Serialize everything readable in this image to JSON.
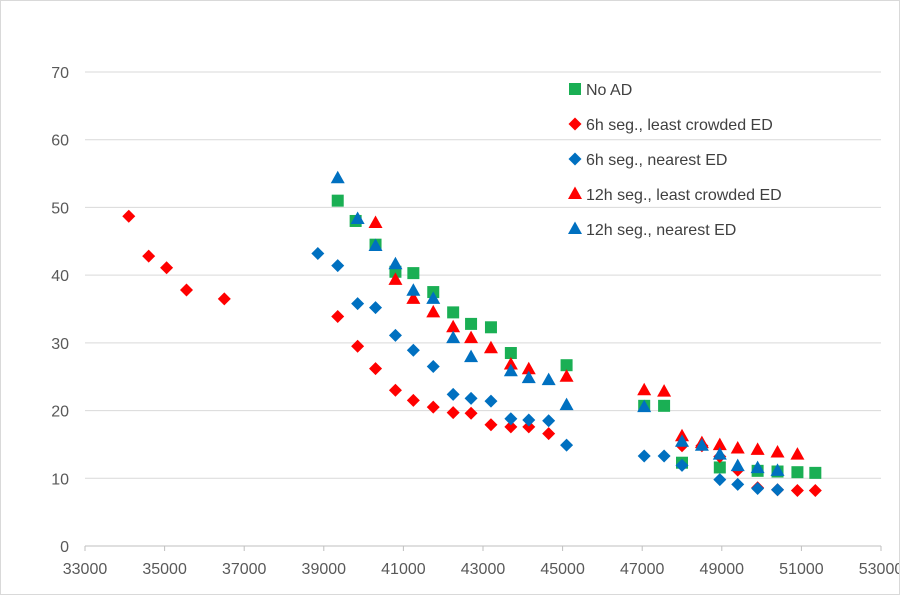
{
  "chart_data": {
    "type": "scatter",
    "title": "",
    "xlabel": "",
    "ylabel": "",
    "xlim": [
      33000,
      53000
    ],
    "ylim": [
      0,
      70
    ],
    "x_ticks": [
      33000,
      35000,
      37000,
      39000,
      41000,
      43000,
      45000,
      47000,
      49000,
      51000,
      53000
    ],
    "y_ticks": [
      0,
      10,
      20,
      30,
      40,
      50,
      60,
      70
    ],
    "grid": "horizontal",
    "legend_position": "top-right (inside plot)",
    "series": [
      {
        "name": "No AD",
        "marker": "square",
        "color": "#1aaf54",
        "points": [
          [
            39350,
            51
          ],
          [
            39800,
            48
          ],
          [
            40300,
            44.5
          ],
          [
            40800,
            40.5
          ],
          [
            41250,
            40.3
          ],
          [
            41750,
            37.5
          ],
          [
            42250,
            34.5
          ],
          [
            42700,
            32.8
          ],
          [
            43200,
            32.3
          ],
          [
            43700,
            28.5
          ],
          [
            45100,
            26.7
          ],
          [
            47050,
            20.7
          ],
          [
            47550,
            20.7
          ],
          [
            48000,
            12.3
          ],
          [
            48950,
            11.6
          ],
          [
            49900,
            11.1
          ],
          [
            50400,
            11
          ],
          [
            50900,
            10.9
          ],
          [
            51350,
            10.8
          ]
        ]
      },
      {
        "name": "6h seg., least crowded ED",
        "marker": "diamond",
        "color": "#ff0000",
        "points": [
          [
            34100,
            48.7
          ],
          [
            34600,
            42.8
          ],
          [
            35050,
            41.1
          ],
          [
            35550,
            37.8
          ],
          [
            36500,
            36.5
          ],
          [
            39350,
            33.9
          ],
          [
            39850,
            29.5
          ],
          [
            40300,
            26.2
          ],
          [
            40800,
            23
          ],
          [
            41250,
            21.5
          ],
          [
            41750,
            20.5
          ],
          [
            42250,
            19.7
          ],
          [
            42700,
            19.6
          ],
          [
            43200,
            17.9
          ],
          [
            43700,
            17.6
          ],
          [
            44150,
            17.6
          ],
          [
            44650,
            16.6
          ],
          [
            48000,
            14.8
          ],
          [
            48500,
            14.8
          ],
          [
            48950,
            13.2
          ],
          [
            49400,
            11.2
          ],
          [
            49900,
            8.6
          ],
          [
            50400,
            8.3
          ],
          [
            50900,
            8.2
          ],
          [
            51350,
            8.2
          ]
        ]
      },
      {
        "name": "6h seg., nearest ED",
        "marker": "diamond",
        "color": "#0070c0",
        "points": [
          [
            38850,
            43.2
          ],
          [
            39350,
            41.4
          ],
          [
            39850,
            35.8
          ],
          [
            40300,
            35.2
          ],
          [
            40800,
            31.1
          ],
          [
            41250,
            28.9
          ],
          [
            41750,
            26.5
          ],
          [
            42250,
            22.4
          ],
          [
            42700,
            21.8
          ],
          [
            43200,
            21.4
          ],
          [
            43700,
            18.8
          ],
          [
            44150,
            18.6
          ],
          [
            44650,
            18.5
          ],
          [
            45100,
            14.9
          ],
          [
            47050,
            13.3
          ],
          [
            47550,
            13.3
          ],
          [
            48000,
            11.9
          ],
          [
            48950,
            9.8
          ],
          [
            49400,
            9.1
          ],
          [
            49900,
            8.5
          ],
          [
            50400,
            8.3
          ]
        ]
      },
      {
        "name": "12h seg., least crowded ED",
        "marker": "triangle",
        "color": "#ff0000",
        "points": [
          [
            40300,
            47.7
          ],
          [
            40800,
            39.3
          ],
          [
            41250,
            36.5
          ],
          [
            41750,
            34.5
          ],
          [
            42250,
            32.3
          ],
          [
            42700,
            30.7
          ],
          [
            43200,
            29.2
          ],
          [
            43700,
            26.8
          ],
          [
            44150,
            26.1
          ],
          [
            45100,
            25
          ],
          [
            47050,
            23
          ],
          [
            47550,
            22.8
          ],
          [
            48000,
            16.2
          ],
          [
            48500,
            15.2
          ],
          [
            48950,
            14.9
          ],
          [
            49400,
            14.4
          ],
          [
            49900,
            14.2
          ],
          [
            50400,
            13.8
          ],
          [
            50900,
            13.5
          ]
        ]
      },
      {
        "name": "12h seg., nearest ED",
        "marker": "triangle",
        "color": "#0070c0",
        "points": [
          [
            39350,
            54.3
          ],
          [
            39850,
            48.3
          ],
          [
            40300,
            44.3
          ],
          [
            40800,
            41.6
          ],
          [
            41250,
            37.7
          ],
          [
            41750,
            36.5
          ],
          [
            42250,
            30.7
          ],
          [
            42700,
            27.9
          ],
          [
            43700,
            25.8
          ],
          [
            44150,
            24.8
          ],
          [
            44650,
            24.5
          ],
          [
            45100,
            20.8
          ],
          [
            47050,
            20.5
          ],
          [
            48000,
            15.4
          ],
          [
            48500,
            14.8
          ],
          [
            48950,
            13.5
          ],
          [
            49400,
            11.8
          ],
          [
            49900,
            11.5
          ],
          [
            50400,
            11.1
          ]
        ]
      }
    ]
  }
}
